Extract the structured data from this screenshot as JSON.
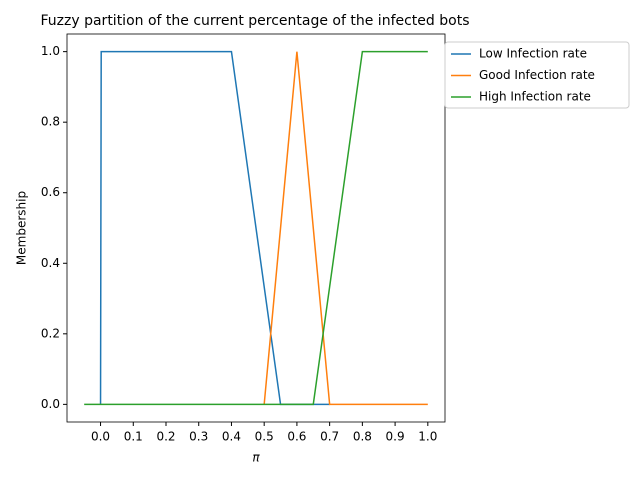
{
  "chart_data": {
    "type": "line",
    "title": "Fuzzy partition of the current percentage of the infected bots",
    "xlabel": "π",
    "ylabel": "Membership",
    "xlim": [
      -0.1025,
      1.0525
    ],
    "ylim": [
      -0.05,
      1.05
    ],
    "xticks": [
      {
        "value": 0,
        "label": "0.0"
      },
      0.1,
      0.2,
      0.3,
      0.4,
      0.5,
      0.6,
      0.7,
      0.8,
      0.9,
      {
        "value": 1,
        "label": "1.0"
      }
    ],
    "yticks": [
      {
        "value": 0,
        "label": "0.0"
      },
      0.2,
      0.4,
      0.6,
      0.8,
      {
        "value": 1,
        "label": "1.0"
      }
    ],
    "legend": "outside-upper-right",
    "series": [
      {
        "name": "Low Infection rate",
        "color": "#1f77b4",
        "x": [
          0,
          0.002,
          0.4,
          0.55,
          0.7
        ],
        "values": [
          0,
          1,
          1,
          0,
          0
        ]
      },
      {
        "name": "Good Infection rate",
        "color": "#ff7f0e",
        "x": [
          0.5,
          0.6,
          0.7,
          1.0
        ],
        "values": [
          0,
          1,
          0,
          0
        ]
      },
      {
        "name": "High Infection rate",
        "color": "#2ca02c",
        "x": [
          -0.05,
          0.65,
          0.8,
          1.0
        ],
        "values": [
          0,
          0,
          1,
          1
        ]
      }
    ]
  }
}
